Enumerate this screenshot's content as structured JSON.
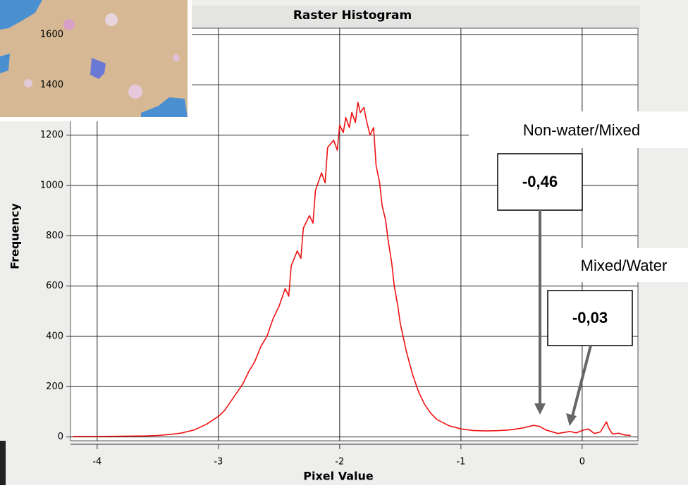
{
  "chart_data": {
    "type": "line",
    "title": "Raster Histogram",
    "x_label": "Pixel Value",
    "y_label": "Frequency",
    "x": [
      -4.2,
      -4.0,
      -3.8,
      -3.6,
      -3.5,
      -3.4,
      -3.3,
      -3.2,
      -3.1,
      -3.0,
      -2.95,
      -2.9,
      -2.85,
      -2.8,
      -2.75,
      -2.7,
      -2.65,
      -2.6,
      -2.55,
      -2.5,
      -2.45,
      -2.42,
      -2.4,
      -2.35,
      -2.32,
      -2.3,
      -2.25,
      -2.22,
      -2.2,
      -2.15,
      -2.12,
      -2.1,
      -2.05,
      -2.02,
      -2.0,
      -1.97,
      -1.95,
      -1.92,
      -1.9,
      -1.87,
      -1.85,
      -1.83,
      -1.8,
      -1.78,
      -1.75,
      -1.72,
      -1.7,
      -1.67,
      -1.65,
      -1.62,
      -1.6,
      -1.57,
      -1.55,
      -1.52,
      -1.5,
      -1.45,
      -1.4,
      -1.35,
      -1.3,
      -1.25,
      -1.2,
      -1.1,
      -1.0,
      -0.9,
      -0.8,
      -0.7,
      -0.6,
      -0.5,
      -0.4,
      -0.35,
      -0.3,
      -0.2,
      -0.15,
      -0.1,
      -0.05,
      0.0,
      0.05,
      0.1,
      0.15,
      0.2,
      0.22,
      0.25,
      0.3,
      0.35,
      0.4
    ],
    "values": [
      2,
      2,
      3,
      4,
      6,
      10,
      16,
      28,
      50,
      82,
      105,
      140,
      175,
      210,
      260,
      300,
      360,
      400,
      470,
      520,
      590,
      560,
      680,
      740,
      710,
      830,
      880,
      850,
      980,
      1050,
      1010,
      1150,
      1180,
      1140,
      1240,
      1210,
      1270,
      1230,
      1290,
      1250,
      1330,
      1290,
      1310,
      1260,
      1200,
      1230,
      1080,
      1010,
      920,
      860,
      780,
      690,
      600,
      520,
      450,
      340,
      250,
      180,
      130,
      95,
      70,
      45,
      32,
      26,
      24,
      25,
      28,
      35,
      46,
      42,
      28,
      14,
      18,
      22,
      16,
      26,
      32,
      14,
      20,
      60,
      35,
      12,
      15,
      8,
      6
    ],
    "color": "#ee1111",
    "xlim": [
      -4.22,
      0.46
    ],
    "ylim": [
      -15,
      1625
    ],
    "xticks": [
      -4,
      -3,
      -2,
      -1,
      0
    ],
    "yticks": [
      0,
      200,
      400,
      600,
      800,
      1000,
      1200,
      1400,
      1600
    ],
    "grid": true,
    "annotations": [
      "Non-water/Mixed",
      "-0,46",
      "Mixed/Water",
      "-0,03"
    ]
  }
}
